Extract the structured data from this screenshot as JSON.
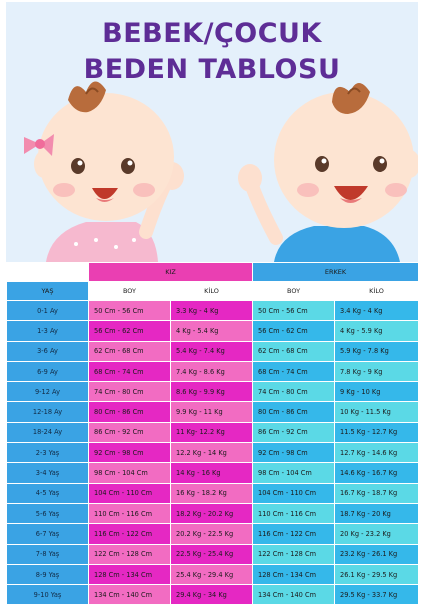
{
  "title": {
    "line1": "BEBEK/ÇOCUK",
    "line2": "BEDEN TABLOSU"
  },
  "colors": {
    "title": "#5e2d96",
    "background": "#e4f0fb",
    "age_col": "#3aa3e4",
    "girl_a": "#f26cc2",
    "girl_b": "#e528c3",
    "boy_a": "#5bd9e6",
    "boy_b": "#35b8ea"
  },
  "illustration": {
    "left": "baby-girl-waving",
    "right": "baby-boy-waving"
  },
  "table": {
    "girl_header": "KIZ",
    "boy_header": "ERKEK",
    "age_header": "YAŞ",
    "height_header": "BOY",
    "weight_header": "KİLO",
    "rows": [
      {
        "age": "0-1 Ay",
        "g_boy": "50 Cm - 56 Cm",
        "g_kilo": "3.3 Kg - 4 Kg",
        "b_boy": "50 Cm - 56 Cm",
        "b_kilo": "3.4 Kg - 4 Kg"
      },
      {
        "age": "1-3 Ay",
        "g_boy": "56 Cm - 62 Cm",
        "g_kilo": "4 Kg - 5.4 Kg",
        "b_boy": "56 Cm - 62 Cm",
        "b_kilo": "4 Kg - 5.9 Kg"
      },
      {
        "age": "3-6 Ay",
        "g_boy": "62 Cm - 68 Cm",
        "g_kilo": "5.4 Kg - 7.4 Kg",
        "b_boy": "62 Cm - 68 Cm",
        "b_kilo": "5.9 Kg - 7.8 Kg"
      },
      {
        "age": "6-9 Ay",
        "g_boy": "68 Cm - 74 Cm",
        "g_kilo": "7.4 Kg - 8.6 Kg",
        "b_boy": "68 Cm - 74 Cm",
        "b_kilo": "7.8 Kg - 9 Kg"
      },
      {
        "age": "9-12 Ay",
        "g_boy": "74 Cm - 80 Cm",
        "g_kilo": "8.6 Kg - 9.9 Kg",
        "b_boy": "74 Cm - 80 Cm",
        "b_kilo": "9 Kg - 10 Kg"
      },
      {
        "age": "12-18 Ay",
        "g_boy": "80 Cm - 86 Cm",
        "g_kilo": "9.9 Kg - 11 Kg",
        "b_boy": "80 Cm - 86 Cm",
        "b_kilo": "10 Kg - 11.5 Kg"
      },
      {
        "age": "18-24 Ay",
        "g_boy": "86 Cm - 92 Cm",
        "g_kilo": "11 Kg- 12.2 Kg",
        "b_boy": "86 Cm - 92 Cm",
        "b_kilo": "11.5 Kg - 12.7 Kg"
      },
      {
        "age": "2-3 Yaş",
        "g_boy": "92 Cm - 98 Cm",
        "g_kilo": "12.2 Kg - 14 Kg",
        "b_boy": "92 Cm - 98 Cm",
        "b_kilo": "12.7 Kg - 14.6 Kg"
      },
      {
        "age": "3-4 Yaş",
        "g_boy": "98 Cm - 104 Cm",
        "g_kilo": "14 Kg - 16 Kg",
        "b_boy": "98 Cm - 104 Cm",
        "b_kilo": "14.6 Kg - 16.7 Kg"
      },
      {
        "age": "4-5 Yaş",
        "g_boy": "104 Cm - 110 Cm",
        "g_kilo": "16 Kg - 18.2 Kg",
        "b_boy": "104 Cm - 110 Cm",
        "b_kilo": "16.7 Kg - 18.7 Kg"
      },
      {
        "age": "5-6 Yaş",
        "g_boy": "110 Cm - 116 Cm",
        "g_kilo": "18.2 Kg - 20.2 Kg",
        "b_boy": "110 Cm - 116 Cm",
        "b_kilo": "18.7 Kg - 20 Kg"
      },
      {
        "age": "6-7 Yaş",
        "g_boy": "116 Cm - 122 Cm",
        "g_kilo": "20.2 Kg - 22.5 Kg",
        "b_boy": "116 Cm - 122 Cm",
        "b_kilo": "20 Kg - 23.2 Kg"
      },
      {
        "age": "7-8 Yaş",
        "g_boy": "122 Cm - 128 Cm",
        "g_kilo": "22.5 Kg - 25.4 Kg",
        "b_boy": "122 Cm - 128 Cm",
        "b_kilo": "23.2 Kg - 26.1 Kg"
      },
      {
        "age": "8-9 Yaş",
        "g_boy": "128 Cm - 134 Cm",
        "g_kilo": "25.4 Kg - 29.4 Kg",
        "b_boy": "128 Cm - 134 Cm",
        "b_kilo": "26.1 Kg - 29.5 Kg"
      },
      {
        "age": "9-10 Yaş",
        "g_boy": "134 Cm - 140 Cm",
        "g_kilo": "29.4 Kg - 34 Kg",
        "b_boy": "134 Cm - 140 Cm",
        "b_kilo": "29.5 Kg - 33.7 Kg"
      }
    ]
  }
}
